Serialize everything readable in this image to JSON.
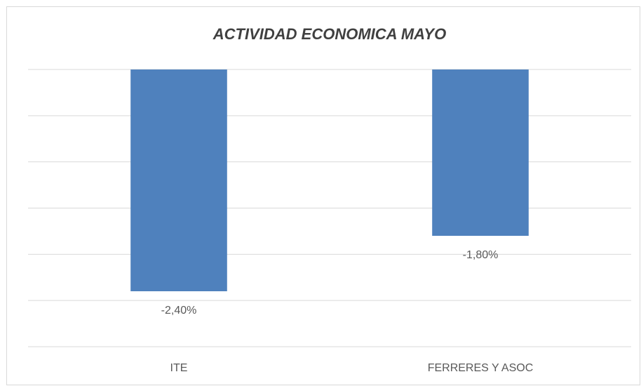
{
  "chart_data": {
    "type": "bar",
    "title": "ACTIVIDAD ECONOMICA MAYO",
    "categories": [
      "ITE",
      "FERRERES Y ASOC"
    ],
    "values": [
      -2.4,
      -1.8
    ],
    "value_labels": [
      "-2,40%",
      "-1,80%"
    ],
    "color": "#4f81bd",
    "ylim": [
      -3,
      0
    ],
    "yticks": [
      0,
      -0.5,
      -1,
      -1.5,
      -2,
      -2.5,
      -3
    ],
    "grid": true
  }
}
